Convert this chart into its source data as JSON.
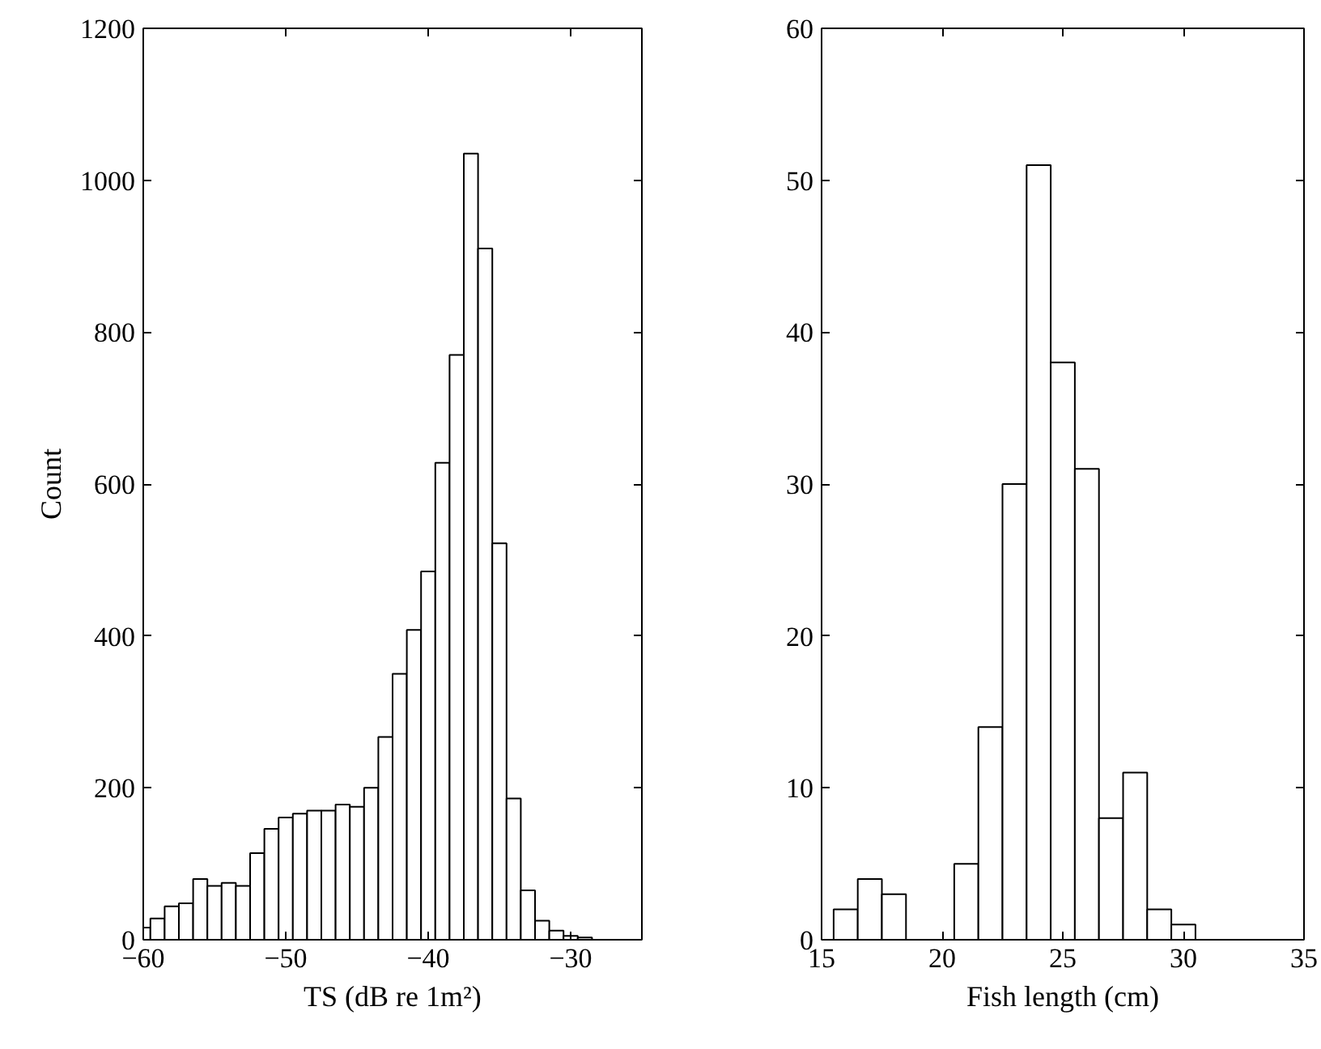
{
  "chart_data": [
    {
      "type": "histogram",
      "xlabel": "TS (dB re 1m²)",
      "ylabel": "Count",
      "color": "#ffffff",
      "bins": [
        -60.5,
        -59.5,
        -58.5,
        -57.5,
        -56.5,
        -55.5,
        -54.5,
        -53.5,
        -52.5,
        -51.5,
        -50.5,
        -49.5,
        -48.5,
        -47.5,
        -46.5,
        -45.5,
        -44.5,
        -43.5,
        -42.5,
        -41.5,
        -40.5,
        -39.5,
        -38.5,
        -37.5,
        -36.5,
        -35.5,
        -34.5,
        -33.5,
        -32.5,
        -31.5,
        -30.5,
        -29.5,
        -28.5
      ],
      "values": [
        16,
        28,
        44,
        48,
        80,
        71,
        75,
        71,
        114,
        146,
        161,
        166,
        170,
        170,
        178,
        175,
        200,
        267,
        350,
        408,
        485,
        628,
        770,
        1035,
        910,
        522,
        186,
        65,
        25,
        12,
        5,
        3
      ],
      "xlim": [
        -60,
        -25
      ],
      "ylim": [
        0,
        1200
      ],
      "xticks": [
        {
          "value": -60,
          "label": "−60"
        },
        {
          "value": -50,
          "label": "−50"
        },
        {
          "value": -40,
          "label": "−40"
        },
        {
          "value": -30,
          "label": "−30"
        }
      ],
      "yticks": [
        0,
        200,
        400,
        600,
        800,
        1000,
        1200
      ],
      "grid": false
    },
    {
      "type": "histogram",
      "xlabel": "Fish length (cm)",
      "color": "#ffffff",
      "bins": [
        15.5,
        16.5,
        17.5,
        18.5,
        19.5,
        20.5,
        21.5,
        22.5,
        23.5,
        24.5,
        25.5,
        26.5,
        27.5,
        28.5,
        29.5,
        30.5
      ],
      "values": [
        2,
        4,
        3,
        0,
        0,
        5,
        14,
        30,
        51,
        38,
        31,
        8,
        11,
        2,
        1
      ],
      "xlim": [
        15,
        35
      ],
      "ylim": [
        0,
        60
      ],
      "xticks": [
        15,
        20,
        25,
        30,
        35
      ],
      "yticks": [
        0,
        10,
        20,
        30,
        40,
        50,
        60
      ],
      "grid": false
    }
  ]
}
